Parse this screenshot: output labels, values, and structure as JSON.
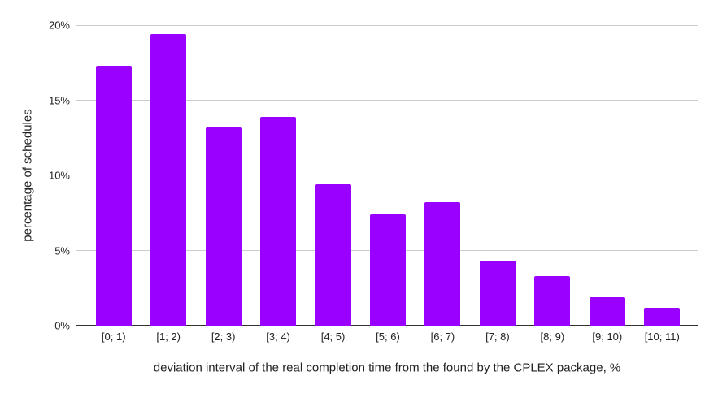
{
  "chart_data": {
    "type": "bar",
    "categories": [
      "[0; 1)",
      "[1; 2)",
      "[2; 3)",
      "[3; 4)",
      "[4; 5)",
      "[5; 6)",
      "[6; 7)",
      "[7; 8)",
      "[8; 9)",
      "[9; 10)",
      "[10; 11)"
    ],
    "values": [
      17.3,
      19.4,
      13.2,
      13.9,
      9.4,
      7.4,
      8.2,
      4.3,
      3.3,
      1.9,
      1.2
    ],
    "title": "",
    "xlabel": "deviation interval of the real completion time from the found by the CPLEX package, %",
    "ylabel": "percentage of schedules",
    "ylim": [
      0,
      20
    ],
    "ytick_step": 5,
    "yticks": [
      "0%",
      "5%",
      "10%",
      "15%",
      "20%"
    ],
    "grid": true,
    "legend_position": "none",
    "colors": {
      "bar": "#9900ff",
      "gridline": "#cccccc",
      "axis_line": "#333333",
      "tick_text": "#222222",
      "title_text": "#222222",
      "background": "#ffffff"
    }
  }
}
